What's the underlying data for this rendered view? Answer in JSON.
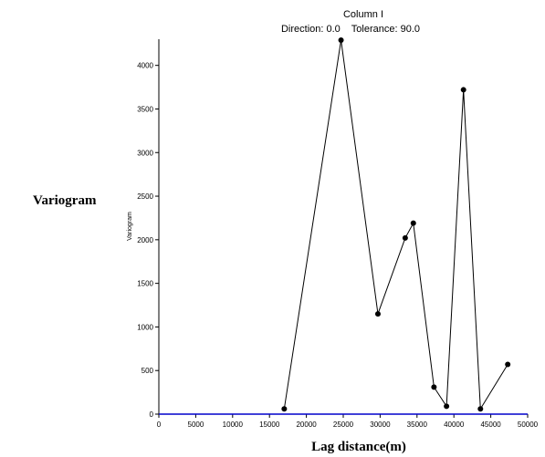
{
  "chart_data": {
    "type": "line",
    "title": "Column I",
    "subtitle": "Direction: 0.0    Tolerance: 90.0",
    "side_label": "Variogram",
    "ylabel": "Variogram",
    "xlabel": "Lag distance(m)",
    "xlim": [
      0,
      50000
    ],
    "ylim": [
      0,
      4300
    ],
    "xticks": [
      0,
      5000,
      10000,
      15000,
      20000,
      25000,
      30000,
      35000,
      40000,
      45000,
      50000
    ],
    "yticks": [
      0,
      500,
      1000,
      1500,
      2000,
      2500,
      3000,
      3500,
      4000
    ],
    "grid": false,
    "series": [
      {
        "color": "#000000",
        "x": [
          17000,
          24700,
          29700,
          33400,
          34500,
          37300,
          39000,
          41300,
          43600,
          47300
        ],
        "y": [
          60,
          4290,
          1150,
          2020,
          2190,
          310,
          90,
          3720,
          60,
          570
        ]
      },
      {
        "color": "#0000cc",
        "x": [
          0,
          50000
        ],
        "y": [
          0,
          0
        ]
      }
    ]
  }
}
